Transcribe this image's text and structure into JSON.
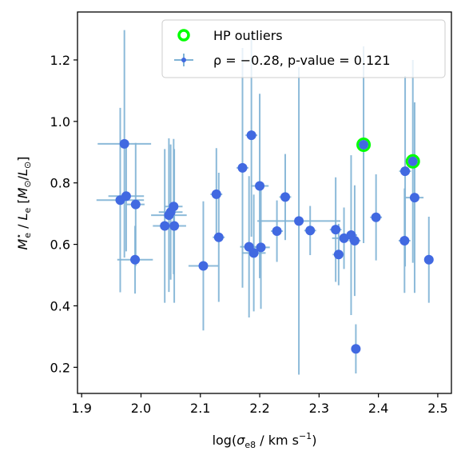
{
  "chart_data": {
    "type": "scatter",
    "xlabel": "log(σe8 / km s⁻¹)",
    "ylabel": "M*e / Le [M⊙/L⊙]",
    "xlim": [
      1.893,
      2.523
    ],
    "ylim": [
      0.115,
      1.356
    ],
    "xticks": [
      "1.9",
      "2.0",
      "2.1",
      "2.2",
      "2.3",
      "2.4",
      "2.5"
    ],
    "yticks": [
      "0.2",
      "0.4",
      "0.6",
      "0.8",
      "1.0",
      "1.2"
    ],
    "grid": false,
    "legend_position": "top-right",
    "colors": {
      "points": "#4169e1",
      "errorbars": "#7fb3d5",
      "outliers": "#00ff00"
    },
    "series": [
      {
        "name": "ρ = −0.28, p-value = 0.121",
        "points": [
          {
            "x": 1.972,
            "y": 0.927,
            "xerr": 0.045,
            "yerr": 0.37
          },
          {
            "x": 1.965,
            "y": 0.744,
            "xerr": 0.04,
            "yerr": 0.3
          },
          {
            "x": 1.975,
            "y": 0.757,
            "xerr": 0.03,
            "yerr": 0.18
          },
          {
            "x": 1.991,
            "y": 0.73,
            "xerr": 0.015,
            "yerr": 0.2
          },
          {
            "x": 1.99,
            "y": 0.55,
            "xerr": 0.03,
            "yerr": 0.11
          },
          {
            "x": 2.04,
            "y": 0.66,
            "xerr": 0.02,
            "yerr": 0.25
          },
          {
            "x": 2.047,
            "y": 0.695,
            "xerr": 0.03,
            "yerr": 0.25
          },
          {
            "x": 2.05,
            "y": 0.705,
            "xerr": 0.02,
            "yerr": 0.22
          },
          {
            "x": 2.055,
            "y": 0.723,
            "xerr": 0.015,
            "yerr": 0.22
          },
          {
            "x": 2.056,
            "y": 0.66,
            "xerr": 0.02,
            "yerr": 0.25
          },
          {
            "x": 2.105,
            "y": 0.53,
            "xerr": 0.025,
            "yerr": 0.21
          },
          {
            "x": 2.127,
            "y": 0.763,
            "xerr": 0.01,
            "yerr": 0.15
          },
          {
            "x": 2.131,
            "y": 0.623,
            "xerr": 0.01,
            "yerr": 0.21
          },
          {
            "x": 2.171,
            "y": 0.849,
            "xerr": 0.01,
            "yerr": 0.39
          },
          {
            "x": 2.182,
            "y": 0.592,
            "xerr": 0.015,
            "yerr": 0.23
          },
          {
            "x": 2.186,
            "y": 0.955,
            "xerr": 0.01,
            "yerr": 0.33
          },
          {
            "x": 2.19,
            "y": 0.572,
            "xerr": 0.02,
            "yerr": 0.19
          },
          {
            "x": 2.2,
            "y": 0.79,
            "xerr": 0.015,
            "yerr": 0.3
          },
          {
            "x": 2.202,
            "y": 0.59,
            "xerr": 0.015,
            "yerr": 0.2
          },
          {
            "x": 2.229,
            "y": 0.643,
            "xerr": 0.01,
            "yerr": 0.1
          },
          {
            "x": 2.243,
            "y": 0.754,
            "xerr": 0.01,
            "yerr": 0.14
          },
          {
            "x": 2.266,
            "y": 0.676,
            "xerr": 0.07,
            "yerr": 0.5
          },
          {
            "x": 2.285,
            "y": 0.645,
            "xerr": 0.01,
            "yerr": 0.08
          },
          {
            "x": 2.328,
            "y": 0.648,
            "xerr": 0.01,
            "yerr": 0.17
          },
          {
            "x": 2.333,
            "y": 0.567,
            "xerr": 0.01,
            "yerr": 0.1
          },
          {
            "x": 2.342,
            "y": 0.62,
            "xerr": 0.02,
            "yerr": 0.1
          },
          {
            "x": 2.354,
            "y": 0.63,
            "xerr": 0.01,
            "yerr": 0.26
          },
          {
            "x": 2.36,
            "y": 0.612,
            "xerr": 0.01,
            "yerr": 0.18
          },
          {
            "x": 2.362,
            "y": 0.26,
            "xerr": 0.005,
            "yerr": 0.08
          },
          {
            "x": 2.375,
            "y": 0.924,
            "xerr": 0.01,
            "yerr": 0.32
          },
          {
            "x": 2.396,
            "y": 0.688,
            "xerr": 0.01,
            "yerr": 0.14
          },
          {
            "x": 2.445,
            "y": 0.838,
            "xerr": 0.01,
            "yerr": 0.31
          },
          {
            "x": 2.444,
            "y": 0.612,
            "xerr": 0.01,
            "yerr": 0.17
          },
          {
            "x": 2.458,
            "y": 0.87,
            "xerr": 0.005,
            "yerr": 0.33
          },
          {
            "x": 2.461,
            "y": 0.752,
            "xerr": 0.015,
            "yerr": 0.31
          },
          {
            "x": 2.485,
            "y": 0.55,
            "xerr": 0.005,
            "yerr": 0.14
          }
        ]
      },
      {
        "name": "HP outliers",
        "points": [
          {
            "x": 2.375,
            "y": 0.924
          },
          {
            "x": 2.458,
            "y": 0.87
          }
        ]
      }
    ]
  }
}
